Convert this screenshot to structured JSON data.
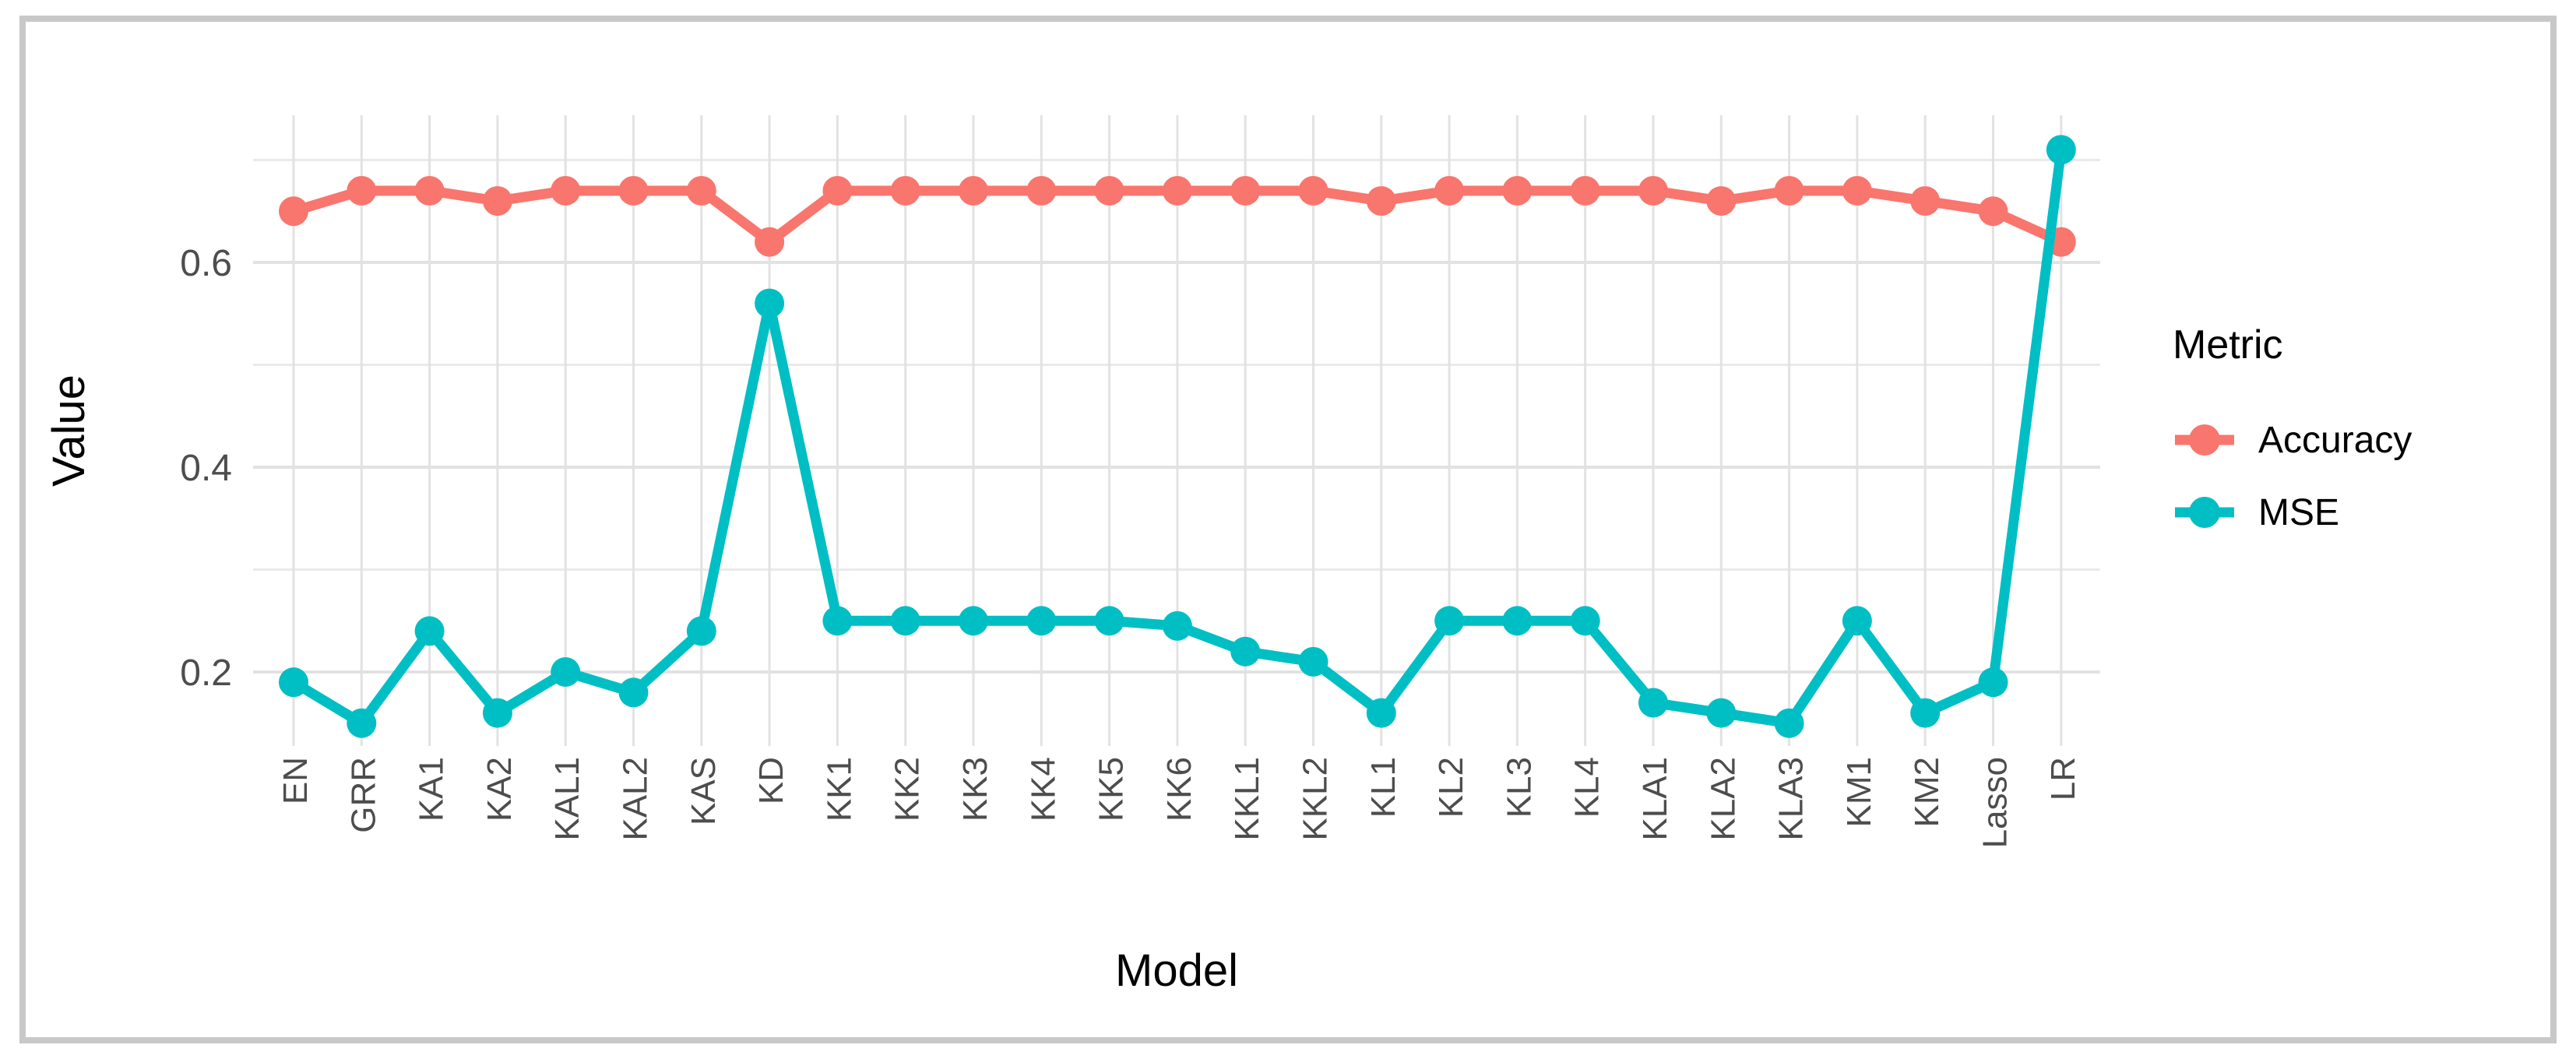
{
  "figure": {
    "border_color": "#C8C8C8",
    "background_color": "#FFFFFF"
  },
  "chart_data": {
    "type": "line",
    "title": "",
    "xlabel": "Model",
    "ylabel": "Value",
    "legend_title": "Metric",
    "legend_position": "right",
    "grid": true,
    "categories": [
      "EN",
      "GRR",
      "KA1",
      "KA2",
      "KAL1",
      "KAL2",
      "KAS",
      "KD",
      "KK1",
      "KK2",
      "KK3",
      "KK4",
      "KK5",
      "KK6",
      "KKL1",
      "KKL2",
      "KL1",
      "KL2",
      "KL3",
      "KL4",
      "KLA1",
      "KLA2",
      "KLA3",
      "KM1",
      "KM2",
      "Lasso",
      "LR"
    ],
    "series": [
      {
        "name": "Accuracy",
        "color": "#F8766D",
        "values": [
          0.65,
          0.67,
          0.67,
          0.66,
          0.67,
          0.67,
          0.67,
          0.62,
          0.67,
          0.67,
          0.67,
          0.67,
          0.67,
          0.67,
          0.67,
          0.67,
          0.66,
          0.67,
          0.67,
          0.67,
          0.67,
          0.66,
          0.67,
          0.67,
          0.66,
          0.65,
          0.62
        ]
      },
      {
        "name": "MSE",
        "color": "#00BFC4",
        "values": [
          0.19,
          0.15,
          0.24,
          0.16,
          0.2,
          0.18,
          0.24,
          0.56,
          0.25,
          0.25,
          0.25,
          0.25,
          0.25,
          0.245,
          0.22,
          0.21,
          0.16,
          0.25,
          0.25,
          0.25,
          0.17,
          0.16,
          0.15,
          0.25,
          0.16,
          0.19,
          0.71
        ]
      }
    ],
    "ytick_values": [
      0.2,
      0.4,
      0.6
    ],
    "ytick_labels": [
      "0.2",
      "0.4",
      "0.6"
    ],
    "minor_gridlines": [
      0.3,
      0.5,
      0.7
    ],
    "ylim": [
      0.128,
      0.744
    ],
    "styles": {
      "tick_label_color": "#4D4D4D",
      "axis_title_color": "#000000",
      "major_grid_color": "#E2E2E2",
      "minor_grid_color": "#EAEAEA"
    }
  }
}
